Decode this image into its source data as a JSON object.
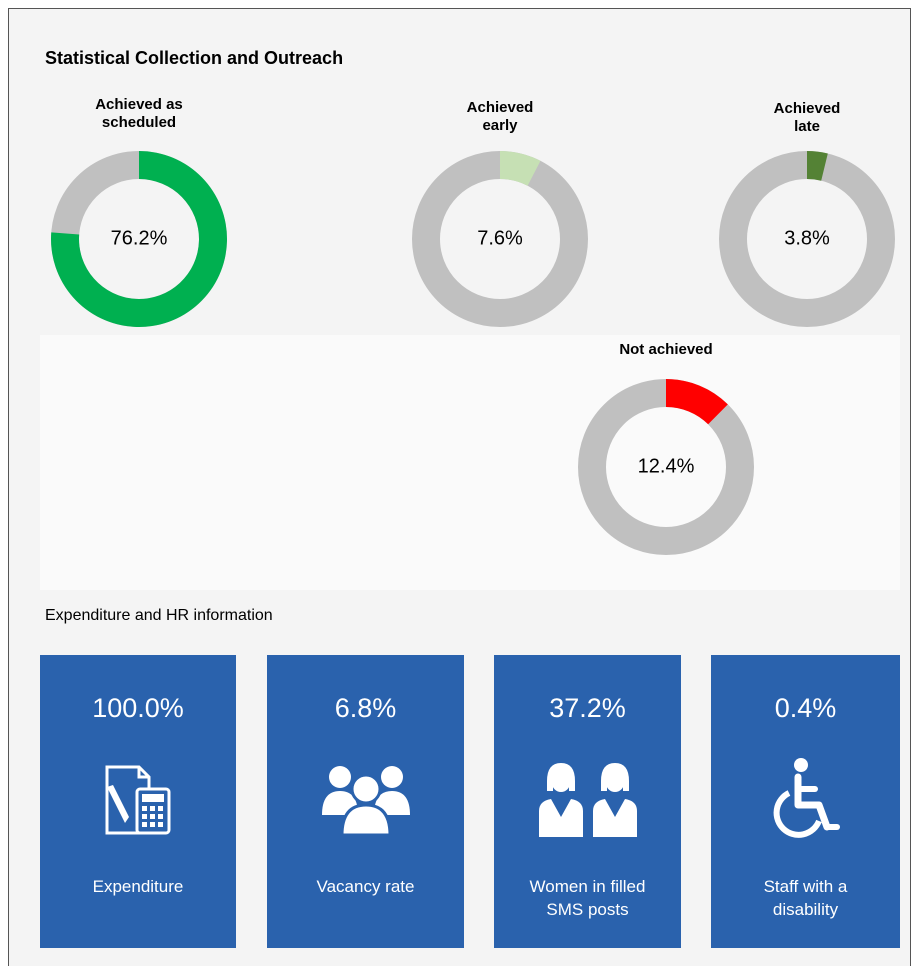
{
  "title": "Statistical Collection and Outreach",
  "chart_data": [
    {
      "type": "donut",
      "title": "Achieved as scheduled",
      "values": [
        76.2
      ],
      "value_labels": [
        "76.2%"
      ],
      "color": "#00b050",
      "track_color": "#c0c0c0"
    },
    {
      "type": "donut",
      "title": "Achieved early",
      "values": [
        7.6
      ],
      "value_labels": [
        "7.6%"
      ],
      "color": "#c6e0b4",
      "track_color": "#c0c0c0"
    },
    {
      "type": "donut",
      "title": "Achieved late",
      "values": [
        3.8
      ],
      "value_labels": [
        "3.8%"
      ],
      "color": "#548235",
      "track_color": "#c0c0c0"
    },
    {
      "type": "donut",
      "title": "Not achieved",
      "values": [
        12.4
      ],
      "value_labels": [
        "12.4%"
      ],
      "color": "#ff0000",
      "track_color": "#c0c0c0"
    }
  ],
  "hr": {
    "title": "Expenditure and HR information",
    "tiles": [
      {
        "value": "100.0%",
        "label": "Expenditure"
      },
      {
        "value": "6.8%",
        "label": "Vacancy rate"
      },
      {
        "value": "37.2%",
        "label": "Women in filled SMS posts"
      },
      {
        "value": "0.4%",
        "label": "Staff with a disability"
      }
    ]
  }
}
